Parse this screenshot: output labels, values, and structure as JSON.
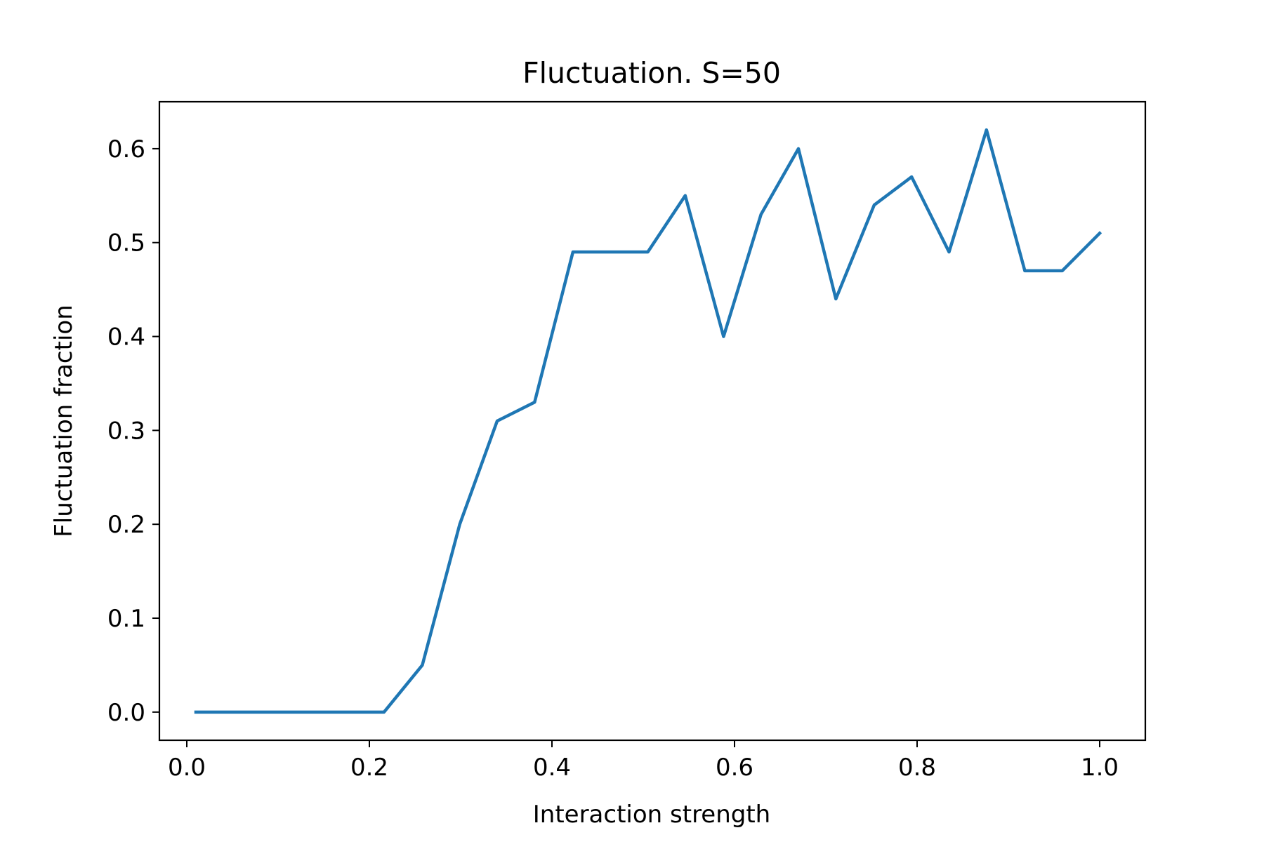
{
  "chart_data": {
    "type": "line",
    "title": "Fluctuation. S=50",
    "xlabel": "Interaction strength",
    "ylabel": "Fluctuation fraction",
    "xlim": [
      -0.03,
      1.05
    ],
    "ylim": [
      -0.03,
      0.65
    ],
    "xticks": [
      0.0,
      0.2,
      0.4,
      0.6,
      0.8,
      1.0
    ],
    "xtick_labels": [
      "0.0",
      "0.2",
      "0.4",
      "0.6",
      "0.8",
      "1.0"
    ],
    "yticks": [
      0.0,
      0.1,
      0.2,
      0.3,
      0.4,
      0.5,
      0.6
    ],
    "ytick_labels": [
      "0.0",
      "0.1",
      "0.2",
      "0.3",
      "0.4",
      "0.5",
      "0.6"
    ],
    "grid": false,
    "series": [
      {
        "color": "#1f77b4",
        "x": [
          0.01,
          0.051,
          0.093,
          0.134,
          0.175,
          0.216,
          0.258,
          0.299,
          0.34,
          0.381,
          0.423,
          0.464,
          0.505,
          0.546,
          0.588,
          0.629,
          0.67,
          0.711,
          0.753,
          0.794,
          0.835,
          0.876,
          0.918,
          0.959,
          1.0
        ],
        "y": [
          0.0,
          0.0,
          0.0,
          0.0,
          0.0,
          0.0,
          0.05,
          0.2,
          0.31,
          0.33,
          0.49,
          0.49,
          0.49,
          0.55,
          0.4,
          0.53,
          0.6,
          0.44,
          0.54,
          0.57,
          0.49,
          0.62,
          0.47,
          0.47,
          0.51
        ]
      }
    ]
  }
}
